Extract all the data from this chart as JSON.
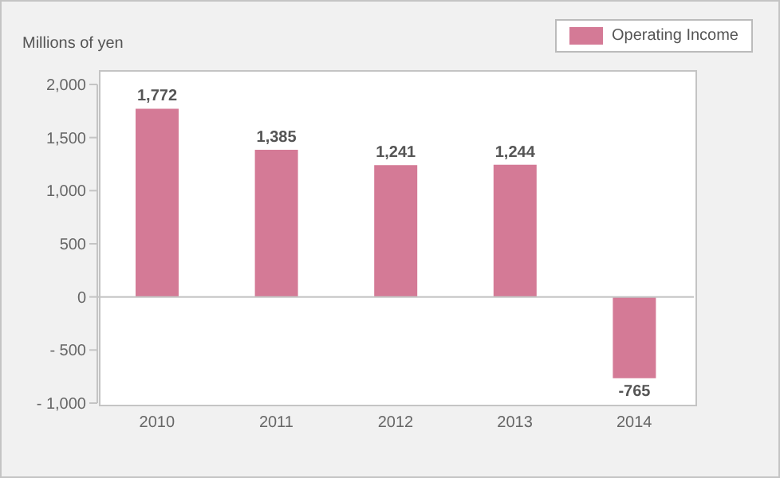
{
  "chart_data": {
    "type": "bar",
    "ylabel": "Millions of yen",
    "categories": [
      "2010",
      "2011",
      "2012",
      "2013",
      "2014"
    ],
    "series": [
      {
        "name": "Operating Income",
        "color": "#d47a96",
        "values": [
          1772,
          1385,
          1241,
          1244,
          -765
        ],
        "value_labels": [
          "1,772",
          "1,385",
          "1,241",
          "1,244",
          "-765"
        ]
      }
    ],
    "ylim": [
      -1000,
      2000
    ],
    "yticks": [
      {
        "value": -1000,
        "label": "- 1,000"
      },
      {
        "value": -500,
        "label": "- 500"
      },
      0,
      {
        "value": 500,
        "label": "500"
      },
      {
        "value": 1000,
        "label": "1,000"
      },
      {
        "value": 1500,
        "label": "1,500"
      },
      {
        "value": 2000,
        "label": "2,000"
      }
    ],
    "legend": "top right"
  }
}
